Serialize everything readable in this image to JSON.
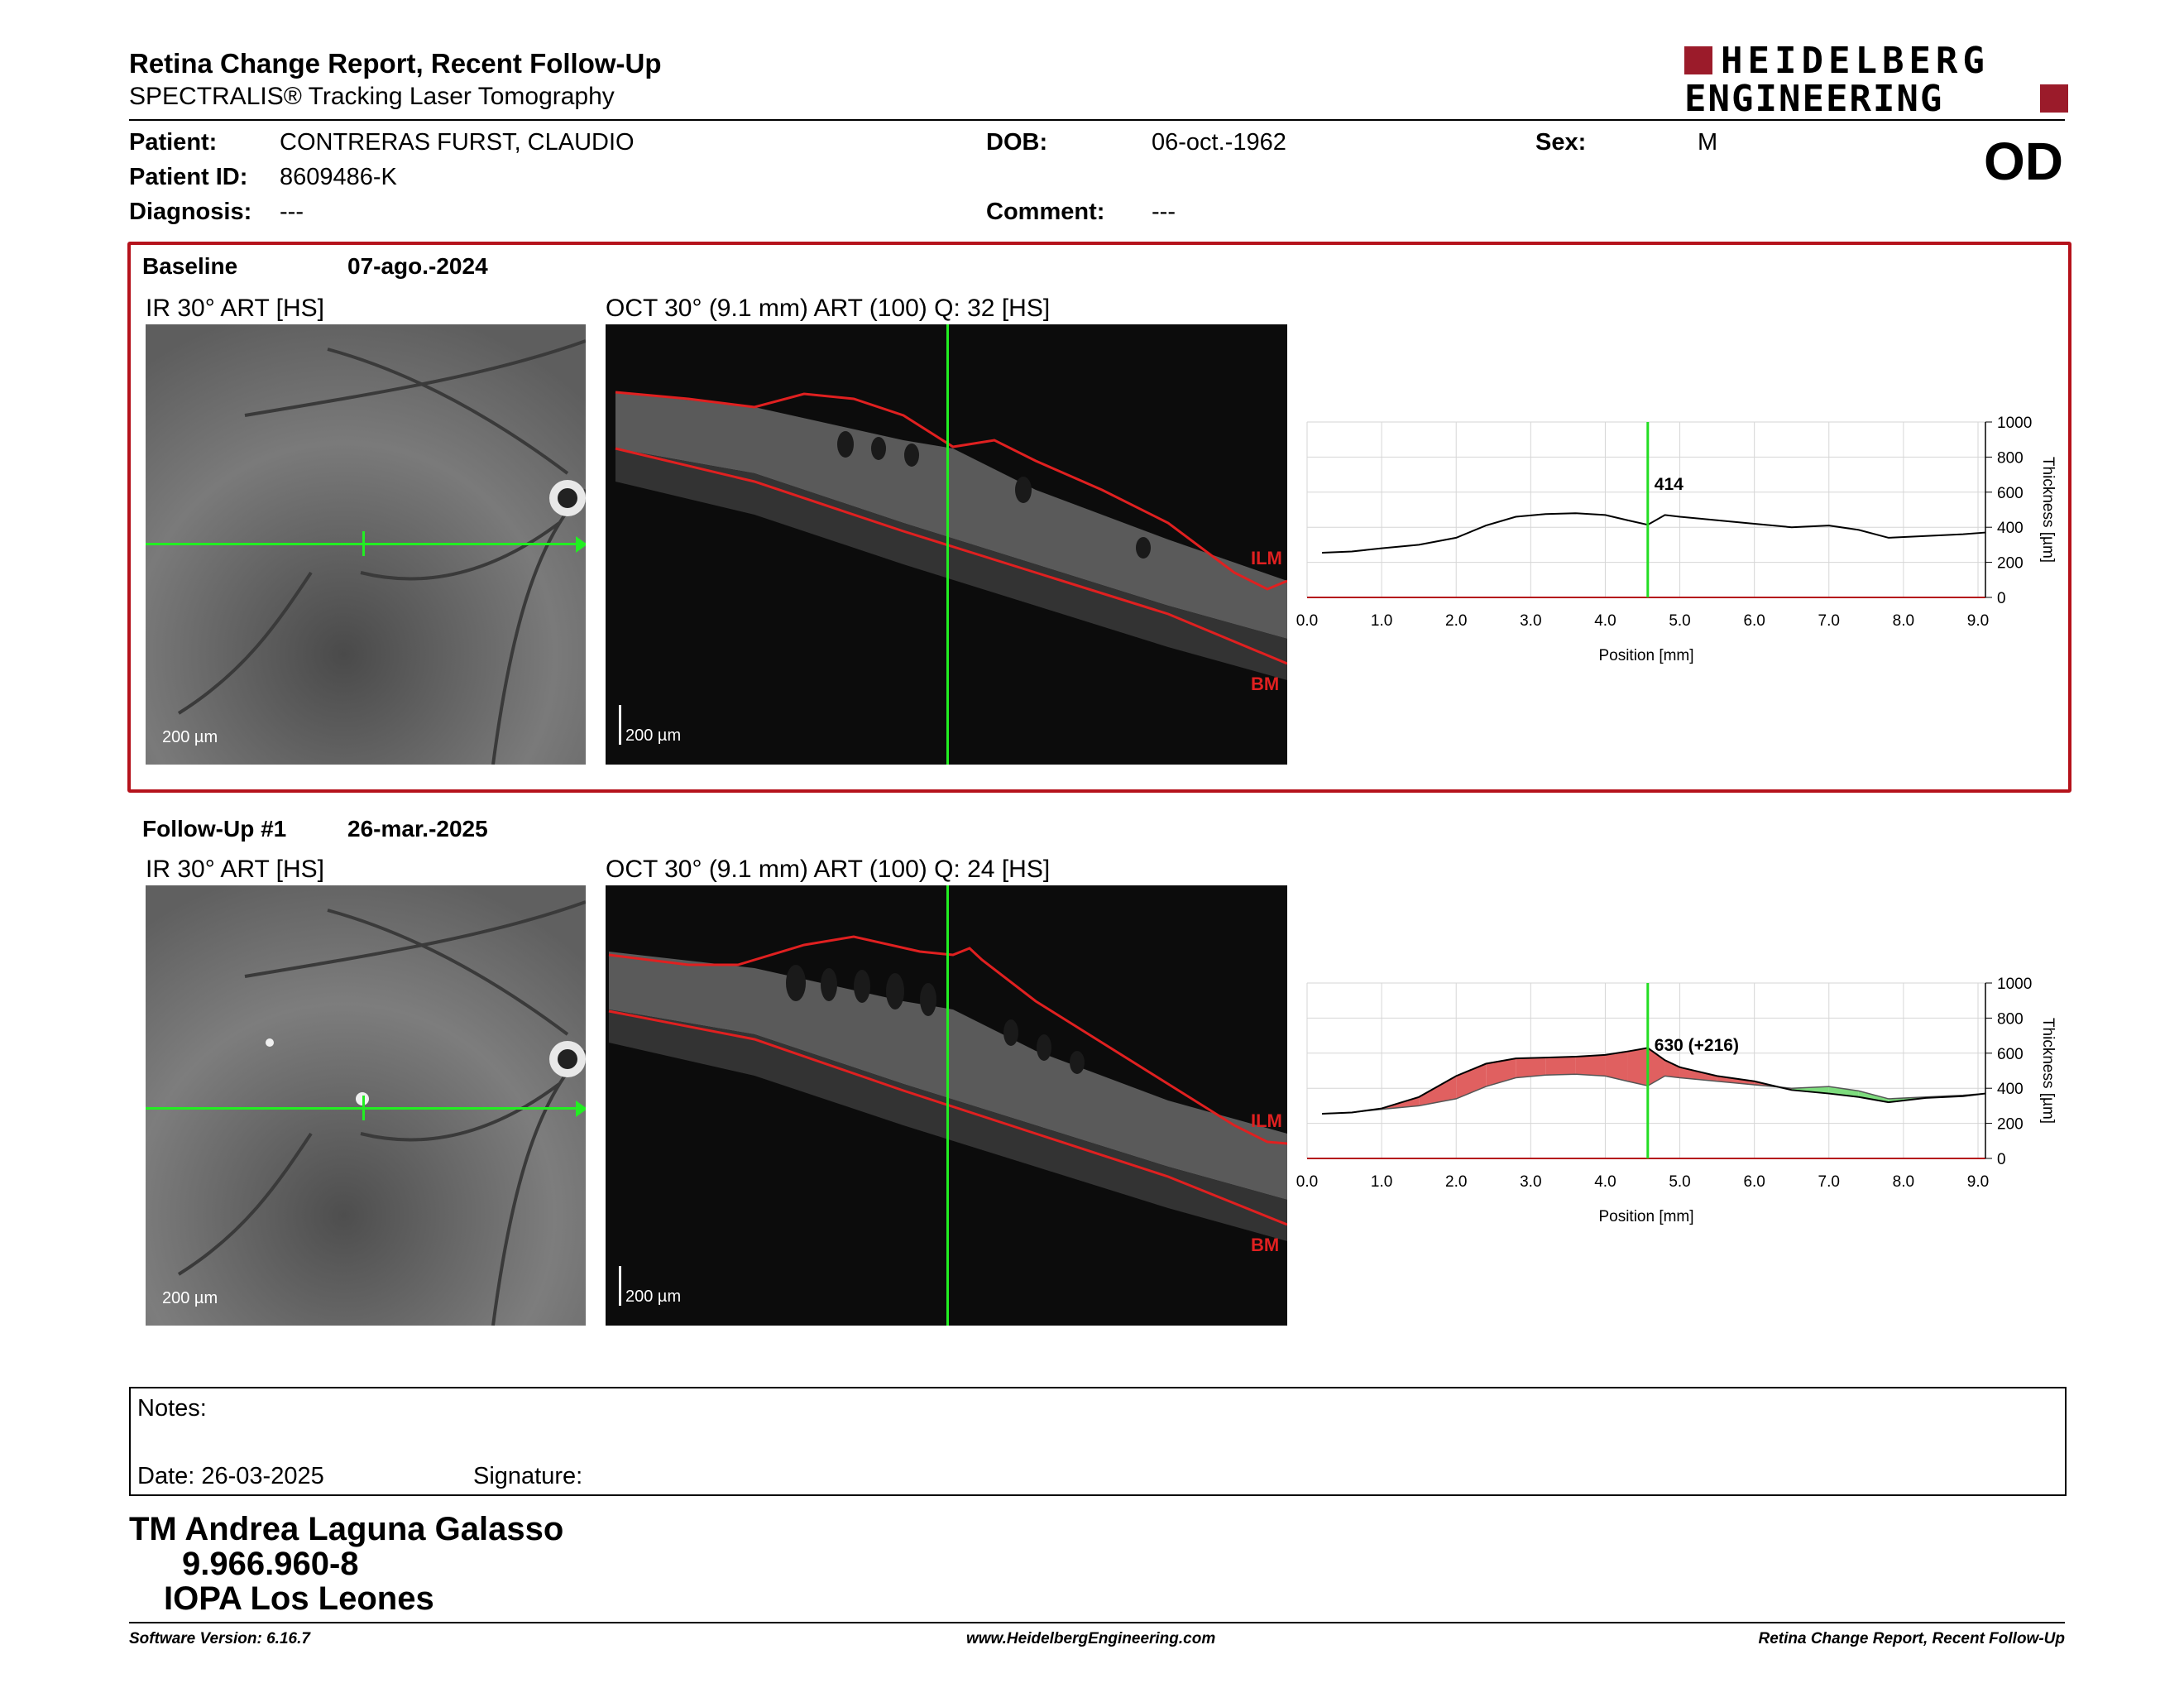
{
  "header": {
    "title": "Retina Change Report, Recent Follow-Up",
    "subtitle": "SPECTRALIS® Tracking Laser Tomography",
    "logo_line1": "HEIDELBERG",
    "logo_line2": "ENGINEERING",
    "eye": "OD"
  },
  "patient": {
    "name_label": "Patient:",
    "name": "CONTRERAS FURST, CLAUDIO",
    "id_label": "Patient ID:",
    "id": "8609486-K",
    "diagnosis_label": "Diagnosis:",
    "diagnosis": "---",
    "dob_label": "DOB:",
    "dob": "06-oct.-1962",
    "comment_label": "Comment:",
    "comment": "---",
    "sex_label": "Sex:",
    "sex": "M"
  },
  "baseline": {
    "label": "Baseline",
    "date": "07-ago.-2024",
    "ir_title": "IR 30° ART [HS]",
    "oct_title": "OCT 30° (9.1 mm) ART (100) Q: 32 [HS]",
    "scale_ir": "200 µm",
    "scale_oct": "200 µm",
    "ilm": "ILM",
    "bm": "BM",
    "marker_value": "414"
  },
  "followup": {
    "label": "Follow-Up #1",
    "date": "26-mar.-2025",
    "ir_title": "IR 30° ART [HS]",
    "oct_title": "OCT 30° (9.1 mm) ART (100) Q: 24 [HS]",
    "scale_ir": "200 µm",
    "scale_oct": "200 µm",
    "ilm": "ILM",
    "bm": "BM",
    "marker_value": "630 (+216)"
  },
  "chart_data": [
    {
      "type": "line",
      "xlabel": "Position [mm]",
      "ylabel": "Thickness [µm]",
      "xlim": [
        0,
        9.1
      ],
      "ylim": [
        0,
        1000
      ],
      "xticks": [
        "0.0",
        "1.0",
        "2.0",
        "3.0",
        "4.0",
        "5.0",
        "6.0",
        "7.0",
        "8.0",
        "9.0"
      ],
      "yticks": [
        "0",
        "200",
        "400",
        "600",
        "800",
        "1000"
      ],
      "marker_x": 4.57,
      "marker_label": "414",
      "series": [
        {
          "x": [
            0.2,
            0.6,
            1.0,
            1.5,
            2.0,
            2.4,
            2.8,
            3.2,
            3.6,
            4.0,
            4.3,
            4.57,
            4.8,
            5.0,
            5.5,
            6.0,
            6.5,
            7.0,
            7.4,
            7.8,
            8.3,
            8.8,
            9.1
          ],
          "values": [
            255,
            262,
            280,
            300,
            340,
            410,
            460,
            475,
            480,
            470,
            440,
            414,
            470,
            460,
            440,
            420,
            400,
            410,
            385,
            340,
            350,
            360,
            370
          ]
        }
      ]
    },
    {
      "type": "area",
      "xlabel": "Position [mm]",
      "ylabel": "Thickness [µm]",
      "xlim": [
        0,
        9.1
      ],
      "ylim": [
        0,
        1000
      ],
      "xticks": [
        "0.0",
        "1.0",
        "2.0",
        "3.0",
        "4.0",
        "5.0",
        "6.0",
        "7.0",
        "8.0",
        "9.0"
      ],
      "yticks": [
        "0",
        "200",
        "400",
        "600",
        "800",
        "1000"
      ],
      "marker_x": 4.57,
      "marker_label": "630 (+216)",
      "increase_color": "#e06060",
      "decrease_color": "#7ddc7d",
      "series": [
        {
          "x": [
            0.2,
            0.6,
            1.0,
            1.5,
            2.0,
            2.4,
            2.8,
            3.2,
            3.6,
            4.0,
            4.3,
            4.57,
            4.8,
            5.0,
            5.5,
            6.0,
            6.5,
            7.0,
            7.4,
            7.8,
            8.3,
            8.8,
            9.1
          ],
          "values": [
            255,
            262,
            285,
            350,
            470,
            540,
            570,
            575,
            580,
            590,
            610,
            630,
            560,
            520,
            470,
            440,
            390,
            370,
            350,
            320,
            345,
            355,
            370
          ]
        },
        {
          "x": [
            0.2,
            0.6,
            1.0,
            1.5,
            2.0,
            2.4,
            2.8,
            3.2,
            3.6,
            4.0,
            4.3,
            4.57,
            4.8,
            5.0,
            5.5,
            6.0,
            6.5,
            7.0,
            7.4,
            7.8,
            8.3,
            8.8,
            9.1
          ],
          "values": [
            255,
            262,
            280,
            300,
            340,
            410,
            460,
            475,
            480,
            470,
            440,
            414,
            470,
            460,
            440,
            420,
            400,
            410,
            385,
            340,
            350,
            360,
            370
          ]
        }
      ]
    }
  ],
  "notes": {
    "label": "Notes:",
    "date": "Date: 26-03-2025",
    "signature": "Signature:"
  },
  "signer": {
    "name": "TM Andrea Laguna Galasso",
    "rut": "9.966.960-8",
    "org": "IOPA Los Leones"
  },
  "footer": {
    "left": "Software Version: 6.16.7",
    "center": "www.HeidelbergEngineering.com",
    "right": "Retina Change Report, Recent Follow-Up"
  }
}
